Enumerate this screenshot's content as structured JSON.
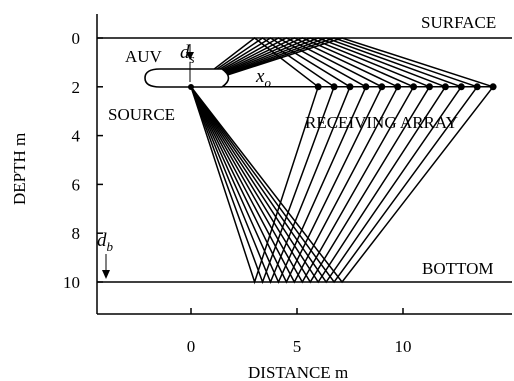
{
  "figure": {
    "x_axis": {
      "label": "DISTANCE  m",
      "ticks": [
        {
          "value": 0,
          "label": "0"
        },
        {
          "value": 5,
          "label": "5"
        },
        {
          "value": 10,
          "label": "10"
        }
      ]
    },
    "y_axis": {
      "label": "DEPTH  m",
      "ticks": [
        {
          "value": 0,
          "label": "0"
        },
        {
          "value": 2,
          "label": "2"
        },
        {
          "value": 4,
          "label": "4"
        },
        {
          "value": 6,
          "label": "6"
        },
        {
          "value": 8,
          "label": "8"
        },
        {
          "value": 10,
          "label": "10"
        }
      ]
    },
    "labels": {
      "surface": "SURFACE",
      "bottom": "BOTTOM",
      "auv": "AUV",
      "source": "SOURCE",
      "receiving_array": "RECEIVING ARRAY",
      "ds_main": "d",
      "ds_sub": "s",
      "xo_main": "x",
      "xo_sub": "o",
      "db_main": "d",
      "db_sub": "b"
    },
    "scene": {
      "surface_depth": 0,
      "bottom_depth": 10,
      "source": {
        "x": 0,
        "depth": 2
      },
      "receivers": {
        "depth": 2,
        "x_values": [
          6.0,
          6.75,
          7.5,
          8.25,
          9.0,
          9.75,
          10.5,
          11.25,
          12.0,
          12.75,
          13.5,
          14.25
        ]
      }
    }
  }
}
